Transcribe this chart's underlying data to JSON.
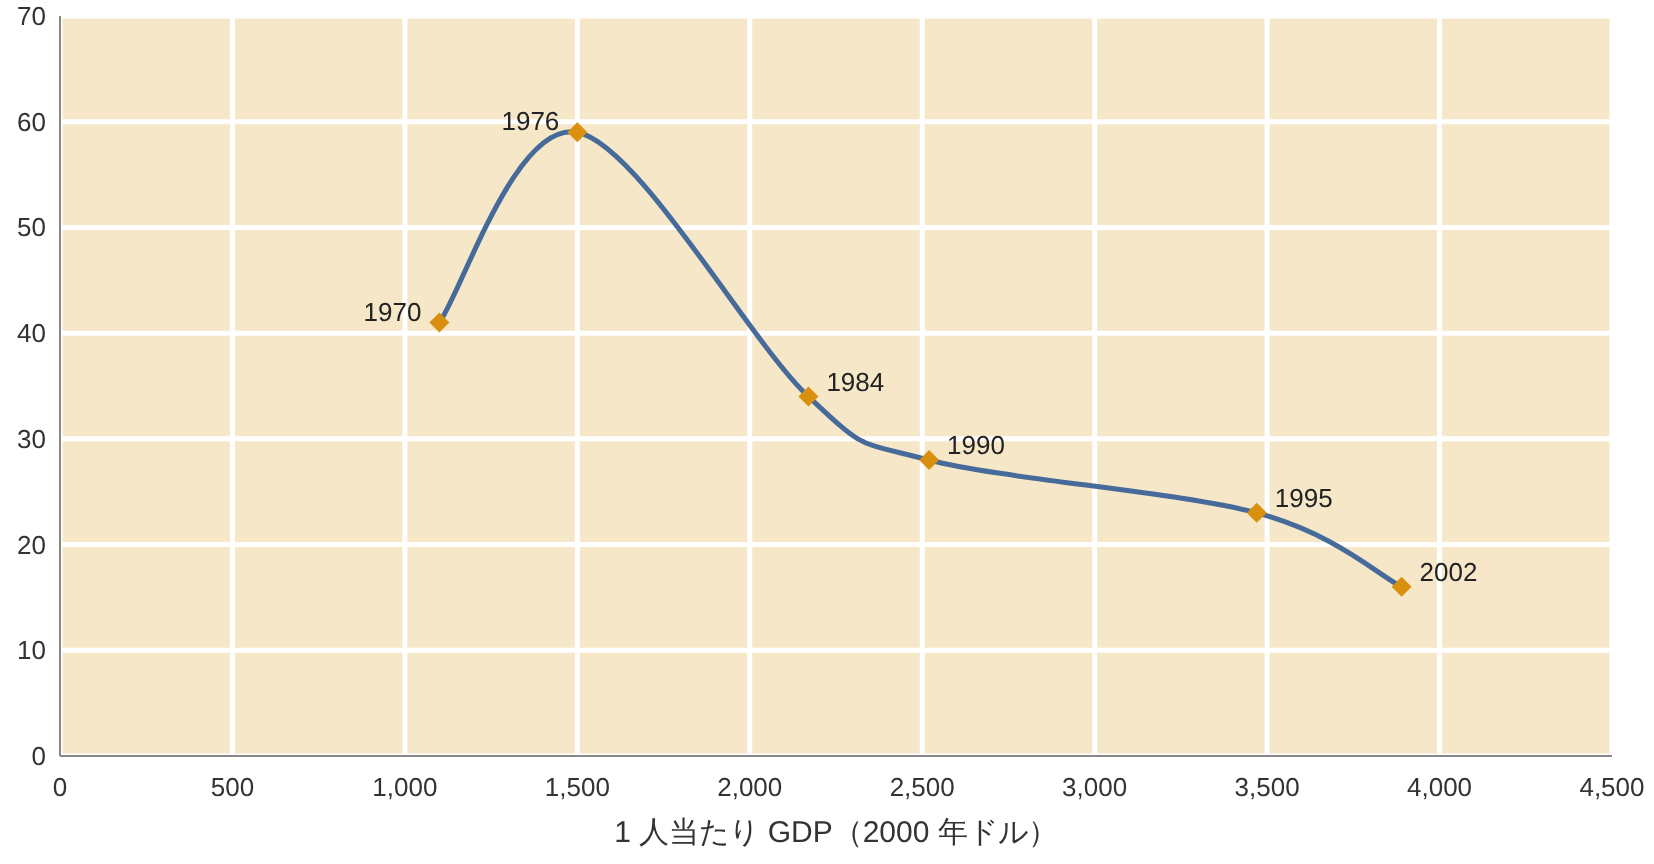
{
  "chart_data": {
    "type": "line",
    "xlabel": "1 人当たり GDP（2000 年ドル）",
    "x": [
      1100,
      1500,
      2170,
      2520,
      3470,
      3890
    ],
    "series": [
      {
        "color": "#466a9a",
        "colors": [
          "#d9900f",
          "#d9900f",
          "#d9900f",
          "#d9900f",
          "#d9900f",
          "#d9900f"
        ],
        "values": [
          41,
          59,
          34,
          28,
          23,
          16
        ]
      }
    ],
    "annotations": [
      {
        "text": "1970",
        "x": 1100,
        "y": 41
      },
      {
        "text": "1976",
        "x": 1500,
        "y": 59
      },
      {
        "text": "1984",
        "x": 2170,
        "y": 34
      },
      {
        "text": "1990",
        "x": 2520,
        "y": 28
      },
      {
        "text": "1995",
        "x": 3470,
        "y": 23
      },
      {
        "text": "2002",
        "x": 3890,
        "y": 16
      }
    ],
    "xlim": [
      0,
      4500
    ],
    "ylim": [
      0,
      70
    ],
    "xticks": [
      0,
      500,
      {
        "value": 1000,
        "label": "1,000"
      },
      {
        "value": 1500,
        "label": "1,500"
      },
      {
        "value": 2000,
        "label": "2,000"
      },
      {
        "value": 2500,
        "label": "2,500"
      },
      {
        "value": 3000,
        "label": "3,000"
      },
      {
        "value": 3500,
        "label": "3,500"
      },
      {
        "value": 4000,
        "label": "4,000"
      },
      {
        "value": 4500,
        "label": "4,500"
      }
    ],
    "yticks": [
      0,
      10,
      20,
      30,
      40,
      50,
      60,
      70
    ],
    "grid": true,
    "marker": "diamond",
    "line_style": "solid"
  }
}
